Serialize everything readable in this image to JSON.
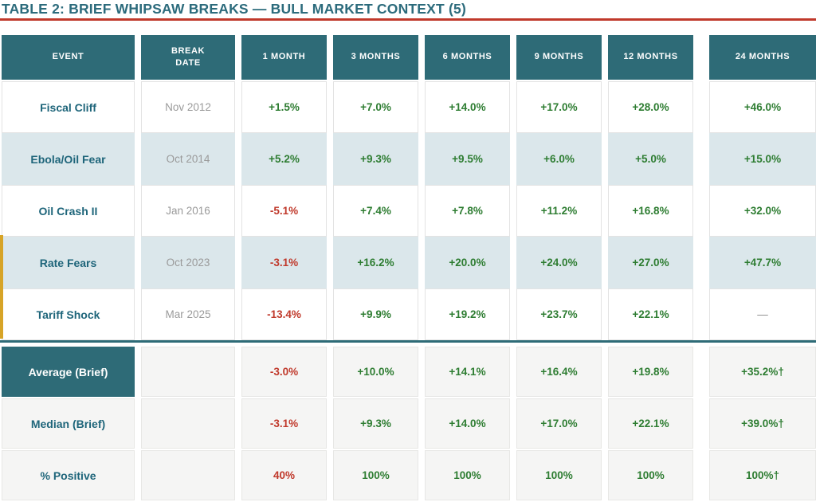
{
  "title": "TABLE 2: BRIEF WHIPSAW BREAKS — BULL MARKET CONTEXT (5)",
  "colors": {
    "accent_teal": "#2e6b77",
    "title_teal": "#2c6b7c",
    "title_underline_red": "#c0392b",
    "positive_green": "#2e7d32",
    "negative_red": "#c0392b",
    "date_gray": "#9a9a9a",
    "alt_row_blue": "#dbe7eb",
    "summary_row_gray": "#f5f5f4",
    "highlight_bar_gold": "#d7a427"
  },
  "chart_data": {
    "type": "table",
    "title": "TABLE 2: BRIEF WHIPSAW BREAKS — BULL MARKET CONTEXT (5)",
    "columns": [
      "EVENT",
      "BREAK\nDATE",
      "1 MONTH",
      "3 MONTHS",
      "6 MONTHS",
      "9 MONTHS",
      "12 MONTHS",
      "24 MONTHS"
    ],
    "rows": [
      {
        "event": "Fiscal Cliff",
        "break_date": "Nov 2012",
        "values": [
          "+1.5%",
          "+7.0%",
          "+14.0%",
          "+17.0%",
          "+28.0%",
          "+46.0%"
        ],
        "tones": [
          "pos",
          "pos",
          "pos",
          "pos",
          "pos",
          "pos"
        ],
        "highlighted": false
      },
      {
        "event": "Ebola/Oil Fear",
        "break_date": "Oct 2014",
        "values": [
          "+5.2%",
          "+9.3%",
          "+9.5%",
          "+6.0%",
          "+5.0%",
          "+15.0%"
        ],
        "tones": [
          "pos",
          "pos",
          "pos",
          "pos",
          "pos",
          "pos"
        ],
        "highlighted": false
      },
      {
        "event": "Oil Crash II",
        "break_date": "Jan 2016",
        "values": [
          "-5.1%",
          "+7.4%",
          "+7.8%",
          "+11.2%",
          "+16.8%",
          "+32.0%"
        ],
        "tones": [
          "neg",
          "pos",
          "pos",
          "pos",
          "pos",
          "pos"
        ],
        "highlighted": false
      },
      {
        "event": "Rate Fears",
        "break_date": "Oct 2023",
        "values": [
          "-3.1%",
          "+16.2%",
          "+20.0%",
          "+24.0%",
          "+27.0%",
          "+47.7%"
        ],
        "tones": [
          "neg",
          "pos",
          "pos",
          "pos",
          "pos",
          "pos"
        ],
        "highlighted": true
      },
      {
        "event": "Tariff Shock",
        "break_date": "Mar 2025",
        "values": [
          "-13.4%",
          "+9.9%",
          "+19.2%",
          "+23.7%",
          "+22.1%",
          "—"
        ],
        "tones": [
          "neg",
          "pos",
          "pos",
          "pos",
          "pos",
          "dash"
        ],
        "highlighted": true
      }
    ],
    "summary_rows": [
      {
        "label": "Average (Brief)",
        "values": [
          "-3.0%",
          "+10.0%",
          "+14.1%",
          "+16.4%",
          "+19.8%",
          "+35.2%†"
        ],
        "tones": [
          "neg",
          "pos",
          "pos",
          "pos",
          "pos",
          "pos"
        ],
        "emphasis": true
      },
      {
        "label": "Median (Brief)",
        "values": [
          "-3.1%",
          "+9.3%",
          "+14.0%",
          "+17.0%",
          "+22.1%",
          "+39.0%†"
        ],
        "tones": [
          "neg",
          "pos",
          "pos",
          "pos",
          "pos",
          "pos"
        ],
        "emphasis": false
      },
      {
        "label": "% Positive",
        "values": [
          "40%",
          "100%",
          "100%",
          "100%",
          "100%",
          "100%†"
        ],
        "tones": [
          "neg",
          "pos",
          "pos",
          "pos",
          "pos",
          "pos"
        ],
        "emphasis": false
      }
    ]
  }
}
